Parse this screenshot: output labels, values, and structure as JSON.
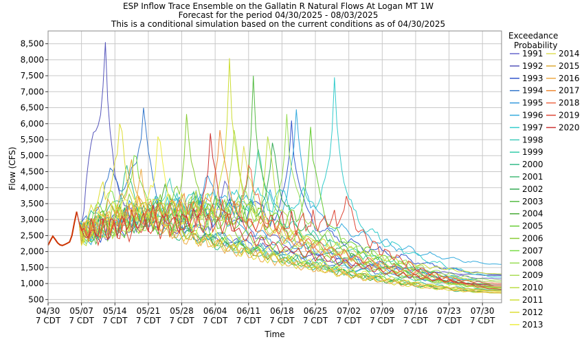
{
  "chart_data": {
    "type": "line",
    "title_lines": [
      "ESP Inflow Trace Ensemble on the Gallatin R Natural Flows At Logan MT 1W",
      "Forecast for the period 04/30/2025 - 08/03/2025",
      "This is a conditional simulation based on the current conditions as of 04/30/2025"
    ],
    "xlabel": "Time",
    "ylabel": "Flow (CFS)",
    "x_start": "04/30",
    "x_end": "08/03",
    "ylim": [
      400,
      8900
    ],
    "yticks": [
      "500",
      "1,000",
      "1,500",
      "2,000",
      "2,500",
      "3,000",
      "3,500",
      "4,000",
      "4,500",
      "5,000",
      "5,500",
      "6,000",
      "6,500",
      "7,000",
      "7,500",
      "8,000",
      "8,500"
    ],
    "ytick_values": [
      500,
      1000,
      1500,
      2000,
      2500,
      3000,
      3500,
      4000,
      4500,
      5000,
      5500,
      6000,
      6500,
      7000,
      7500,
      8000,
      8500
    ],
    "xticks": [
      {
        "date": "04/30",
        "tz": "7 CDT",
        "day": 0
      },
      {
        "date": "05/07",
        "tz": "7 CDT",
        "day": 7
      },
      {
        "date": "05/14",
        "tz": "7 CDT",
        "day": 14
      },
      {
        "date": "05/21",
        "tz": "7 CDT",
        "day": 21
      },
      {
        "date": "05/28",
        "tz": "7 CDT",
        "day": 28
      },
      {
        "date": "06/04",
        "tz": "7 CDT",
        "day": 35
      },
      {
        "date": "06/11",
        "tz": "7 CDT",
        "day": 42
      },
      {
        "date": "06/18",
        "tz": "7 CDT",
        "day": 49
      },
      {
        "date": "06/25",
        "tz": "7 CDT",
        "day": 56
      },
      {
        "date": "07/02",
        "tz": "7 CDT",
        "day": 63
      },
      {
        "date": "07/09",
        "tz": "7 CDT",
        "day": 70
      },
      {
        "date": "07/16",
        "tz": "7 CDT",
        "day": 77
      },
      {
        "date": "07/23",
        "tz": "7 CDT",
        "day": 84
      },
      {
        "date": "07/30",
        "tz": "7 CDT",
        "day": 91
      }
    ],
    "grid": true,
    "legend_title_lines": [
      "Exceedance",
      "Probability"
    ],
    "legend_position": "right",
    "observed": {
      "color": "#cc3300",
      "points": [
        [
          0,
          2200
        ],
        [
          0.5,
          2350
        ],
        [
          1,
          2480
        ],
        [
          1.5,
          2380
        ],
        [
          2,
          2270
        ],
        [
          2.5,
          2210
        ],
        [
          3,
          2190
        ],
        [
          3.5,
          2220
        ],
        [
          4,
          2260
        ],
        [
          4.5,
          2300
        ],
        [
          5,
          2500
        ],
        [
          5.5,
          2900
        ],
        [
          6,
          3250
        ]
      ]
    },
    "series": [
      {
        "name": "1991",
        "color": "#6666cc",
        "peak_day": 37,
        "peak": 4200,
        "early": 3000,
        "end": 1150
      },
      {
        "name": "1992",
        "color": "#5555bb",
        "peak_day": 12,
        "peak": 8550,
        "early": 5500,
        "end": 1250
      },
      {
        "name": "1993",
        "color": "#3355cc",
        "peak_day": 51,
        "peak": 6100,
        "early": 3200,
        "end": 1280
      },
      {
        "name": "1994",
        "color": "#3377cc",
        "peak_day": 20,
        "peak": 6500,
        "early": 4200,
        "end": 950
      },
      {
        "name": "1995",
        "color": "#3399dd",
        "peak_day": 33,
        "peak": 4300,
        "early": 3300,
        "end": 1050
      },
      {
        "name": "1996",
        "color": "#33aadd",
        "peak_day": 52,
        "peak": 6450,
        "early": 3500,
        "end": 1600
      },
      {
        "name": "1997",
        "color": "#33cccc",
        "peak_day": 60,
        "peak": 7450,
        "early": 3600,
        "end": 1200
      },
      {
        "name": "1998",
        "color": "#44ccbb",
        "peak_day": 25,
        "peak": 4100,
        "early": 3100,
        "end": 900
      },
      {
        "name": "1999",
        "color": "#33ccaa",
        "peak_day": 44,
        "peak": 5200,
        "early": 3400,
        "end": 1050
      },
      {
        "name": "2000",
        "color": "#33bb88",
        "peak_day": 16,
        "peak": 4400,
        "early": 3300,
        "end": 800
      },
      {
        "name": "2001",
        "color": "#44bb77",
        "peak_day": 30,
        "peak": 3600,
        "early": 2900,
        "end": 700
      },
      {
        "name": "2002",
        "color": "#33aa55",
        "peak_day": 47,
        "peak": 5400,
        "early": 3300,
        "end": 900
      },
      {
        "name": "2003",
        "color": "#55bb44",
        "peak_day": 43,
        "peak": 7500,
        "early": 3200,
        "end": 850
      },
      {
        "name": "2004",
        "color": "#44aa33",
        "peak_day": 24,
        "peak": 3800,
        "early": 3100,
        "end": 720
      },
      {
        "name": "2005",
        "color": "#66cc33",
        "peak_day": 55,
        "peak": 5900,
        "early": 3000,
        "end": 950
      },
      {
        "name": "2006",
        "color": "#88cc33",
        "peak_day": 29,
        "peak": 6300,
        "early": 3400,
        "end": 880
      },
      {
        "name": "2007",
        "color": "#77dd44",
        "peak_day": 18,
        "peak": 5000,
        "early": 3500,
        "end": 760
      },
      {
        "name": "2008",
        "color": "#99dd55",
        "peak_day": 50,
        "peak": 6300,
        "early": 3200,
        "end": 1100
      },
      {
        "name": "2009",
        "color": "#aadd55",
        "peak_day": 39,
        "peak": 5800,
        "early": 3300,
        "end": 820
      },
      {
        "name": "2010",
        "color": "#bbdd44",
        "peak_day": 46,
        "peak": 5600,
        "early": 3100,
        "end": 850
      },
      {
        "name": "2011",
        "color": "#ccdd33",
        "peak_day": 38,
        "peak": 8050,
        "early": 3500,
        "end": 1300
      },
      {
        "name": "2012",
        "color": "#dddd33",
        "peak_day": 15,
        "peak": 6000,
        "early": 3800,
        "end": 700
      },
      {
        "name": "2013",
        "color": "#eeee44",
        "peak_day": 23,
        "peak": 5600,
        "early": 3400,
        "end": 760
      },
      {
        "name": "2014",
        "color": "#dddd55",
        "peak_day": 41,
        "peak": 5300,
        "early": 3200,
        "end": 1050
      },
      {
        "name": "2015",
        "color": "#ddaa33",
        "peak_day": 17,
        "peak": 4500,
        "early": 3300,
        "end": 780
      },
      {
        "name": "2016",
        "color": "#eeaa44",
        "peak_day": 19,
        "peak": 4100,
        "early": 3100,
        "end": 720
      },
      {
        "name": "2017",
        "color": "#ee8833",
        "peak_day": 36,
        "peak": 5800,
        "early": 3400,
        "end": 900
      },
      {
        "name": "2018",
        "color": "#ee6644",
        "peak_day": 42,
        "peak": 4700,
        "early": 3200,
        "end": 1000
      },
      {
        "name": "2019",
        "color": "#dd4433",
        "peak_day": 62,
        "peak": 3300,
        "early": 2900,
        "end": 820
      },
      {
        "name": "2020",
        "color": "#cc3333",
        "peak_day": 34,
        "peak": 5700,
        "early": 3000,
        "end": 950
      }
    ]
  }
}
